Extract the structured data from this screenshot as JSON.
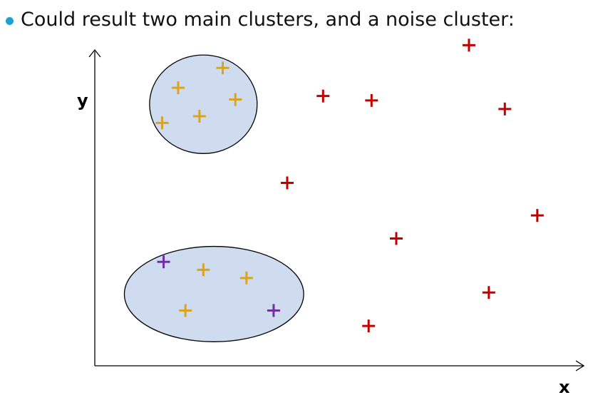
{
  "slide": {
    "bullet_text": "Could result two main clusters, and a noise cluster:"
  },
  "axes": {
    "x_label": "x",
    "y_label": "y"
  },
  "colors": {
    "bullet": "#1ea0d6",
    "cluster_fill": "#cfdcf0",
    "cluster_stroke": "#000000",
    "axis": "#000000",
    "series": {
      "gold": "#d9a520",
      "red": "#c00000",
      "purple": "#7030a0"
    }
  },
  "chart_data": {
    "type": "scatter",
    "title": "",
    "xlabel": "x",
    "ylabel": "y",
    "xlim": [
      0,
      100
    ],
    "ylim": [
      0,
      100
    ],
    "grid": false,
    "clusters": [
      {
        "name": "",
        "center": [
          22.4,
          82.8
        ],
        "radii": [
          11.1,
          15.6
        ]
      },
      {
        "name": "",
        "center": [
          24.6,
          22.7
        ],
        "radii": [
          18.5,
          15.1
        ]
      }
    ],
    "series": [
      {
        "color": "gold",
        "points": [
          [
            17.2,
            88.0
          ],
          [
            29.0,
            84.3
          ],
          [
            21.6,
            79.0
          ],
          [
            13.9,
            76.9
          ],
          [
            26.4,
            94.3
          ],
          [
            22.4,
            30.4
          ],
          [
            31.3,
            27.8
          ],
          [
            18.7,
            17.5
          ]
        ]
      },
      {
        "color": "purple",
        "points": [
          [
            14.2,
            32.9
          ],
          [
            36.9,
            17.5
          ]
        ]
      },
      {
        "color": "red",
        "points": [
          [
            77.2,
            101.5
          ],
          [
            47.1,
            85.4
          ],
          [
            57.1,
            84.0
          ],
          [
            84.6,
            81.3
          ],
          [
            39.7,
            57.9
          ],
          [
            91.3,
            47.6
          ],
          [
            62.2,
            40.3
          ],
          [
            81.3,
            23.2
          ],
          [
            56.5,
            12.6
          ]
        ]
      }
    ]
  }
}
